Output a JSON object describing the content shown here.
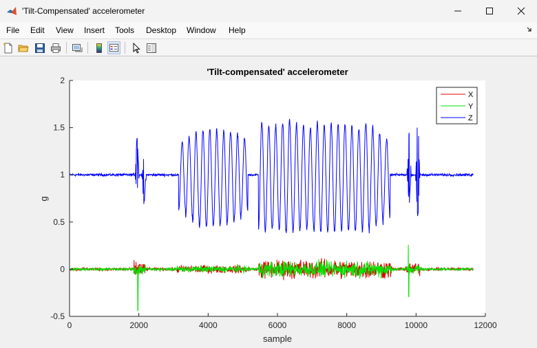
{
  "window": {
    "title": "'Tilt-Compensated' accelerometer",
    "controls": [
      "minimize",
      "maximize",
      "close"
    ]
  },
  "menu": {
    "items": [
      "File",
      "Edit",
      "View",
      "Insert",
      "Tools",
      "Desktop",
      "Window",
      "Help"
    ],
    "overflow_icon": "chevron-arrow-icon"
  },
  "toolbar": {
    "buttons": [
      "new-figure-icon",
      "open-file-icon",
      "save-icon",
      "print-icon",
      "link-plot-icon",
      "insert-colorbar-icon",
      "insert-legend-icon",
      "edit-plot-pointer-icon",
      "property-inspector-icon"
    ]
  },
  "colors": {
    "x": "#e00000",
    "y": "#00e600",
    "z": "#0000ff",
    "axes_bg": "#ffffff",
    "figure_bg": "#f0f0f0"
  },
  "chart_data": {
    "type": "line",
    "title": "'Tilt-compensated' accelerometer",
    "xlabel": "sample",
    "ylabel": "g",
    "xlim": [
      0,
      12000
    ],
    "ylim": [
      -0.5,
      2
    ],
    "xticks": [
      "0",
      "2000",
      "4000",
      "6000",
      "8000",
      "10000",
      "12000"
    ],
    "yticks": [
      "-0.5",
      "0",
      "0.5",
      "1",
      "1.5",
      "2"
    ],
    "legend_position": "top-right",
    "series": [
      {
        "name": "X",
        "color": "#e00000",
        "baseline": 0.0,
        "n_samples": 11650
      },
      {
        "name": "Y",
        "color": "#00e600",
        "baseline": 0.0,
        "n_samples": 11650
      },
      {
        "name": "Z",
        "color": "#0000ff",
        "baseline": 1.0,
        "n_samples": 11650
      }
    ],
    "z_events": [
      {
        "sample": 1950,
        "min": 0.82,
        "max": 1.4
      },
      {
        "sample": 2150,
        "min": 0.7,
        "max": 1.22
      },
      {
        "sample": 9800,
        "min": 0.72,
        "max": 1.45
      },
      {
        "sample": 10050,
        "min": 0.55,
        "max": 1.6
      }
    ],
    "z_oscillation_peaks": [
      {
        "sample": 3250,
        "min": 0.62,
        "max": 1.35
      },
      {
        "sample": 3450,
        "min": 0.55,
        "max": 1.4
      },
      {
        "sample": 3650,
        "min": 0.48,
        "max": 1.45
      },
      {
        "sample": 3850,
        "min": 0.45,
        "max": 1.48
      },
      {
        "sample": 4050,
        "min": 0.44,
        "max": 1.48
      },
      {
        "sample": 4250,
        "min": 0.45,
        "max": 1.48
      },
      {
        "sample": 4450,
        "min": 0.48,
        "max": 1.46
      },
      {
        "sample": 4650,
        "min": 0.5,
        "max": 1.45
      },
      {
        "sample": 4850,
        "min": 0.52,
        "max": 1.42
      },
      {
        "sample": 5050,
        "min": 0.6,
        "max": 1.38
      },
      {
        "sample": 5550,
        "min": 0.4,
        "max": 1.55
      },
      {
        "sample": 5750,
        "min": 0.42,
        "max": 1.52
      },
      {
        "sample": 5950,
        "min": 0.42,
        "max": 1.52
      },
      {
        "sample": 6150,
        "min": 0.4,
        "max": 1.55
      },
      {
        "sample": 6350,
        "min": 0.38,
        "max": 1.58
      },
      {
        "sample": 6550,
        "min": 0.4,
        "max": 1.55
      },
      {
        "sample": 6750,
        "min": 0.42,
        "max": 1.52
      },
      {
        "sample": 6950,
        "min": 0.44,
        "max": 1.5
      },
      {
        "sample": 7150,
        "min": 0.4,
        "max": 1.55
      },
      {
        "sample": 7350,
        "min": 0.4,
        "max": 1.52
      },
      {
        "sample": 7550,
        "min": 0.38,
        "max": 1.55
      },
      {
        "sample": 7750,
        "min": 0.4,
        "max": 1.55
      },
      {
        "sample": 7950,
        "min": 0.4,
        "max": 1.55
      },
      {
        "sample": 8150,
        "min": 0.4,
        "max": 1.52
      },
      {
        "sample": 8350,
        "min": 0.42,
        "max": 1.5
      },
      {
        "sample": 8550,
        "min": 0.4,
        "max": 1.55
      },
      {
        "sample": 8750,
        "min": 0.45,
        "max": 1.5
      },
      {
        "sample": 8950,
        "min": 0.48,
        "max": 1.45
      },
      {
        "sample": 9150,
        "min": 0.55,
        "max": 1.38
      }
    ],
    "xy_noise_regions": [
      {
        "start": 0,
        "end": 1850,
        "amplitude": 0.02
      },
      {
        "start": 1850,
        "end": 2200,
        "amplitude": 0.1
      },
      {
        "start": 2200,
        "end": 3100,
        "amplitude": 0.02
      },
      {
        "start": 3100,
        "end": 5200,
        "amplitude": 0.05
      },
      {
        "start": 5200,
        "end": 5450,
        "amplitude": 0.02
      },
      {
        "start": 5450,
        "end": 9300,
        "amplitude": 0.12
      },
      {
        "start": 9300,
        "end": 9700,
        "amplitude": 0.02
      },
      {
        "start": 9700,
        "end": 10150,
        "amplitude": 0.08
      },
      {
        "start": 10150,
        "end": 11650,
        "amplitude": 0.02
      }
    ],
    "y_spikes": [
      {
        "sample": 1970,
        "value": 0.44
      },
      {
        "sample": 1975,
        "value": -0.44
      },
      {
        "sample": 9780,
        "value": 0.26
      },
      {
        "sample": 9790,
        "value": -0.29
      }
    ]
  }
}
